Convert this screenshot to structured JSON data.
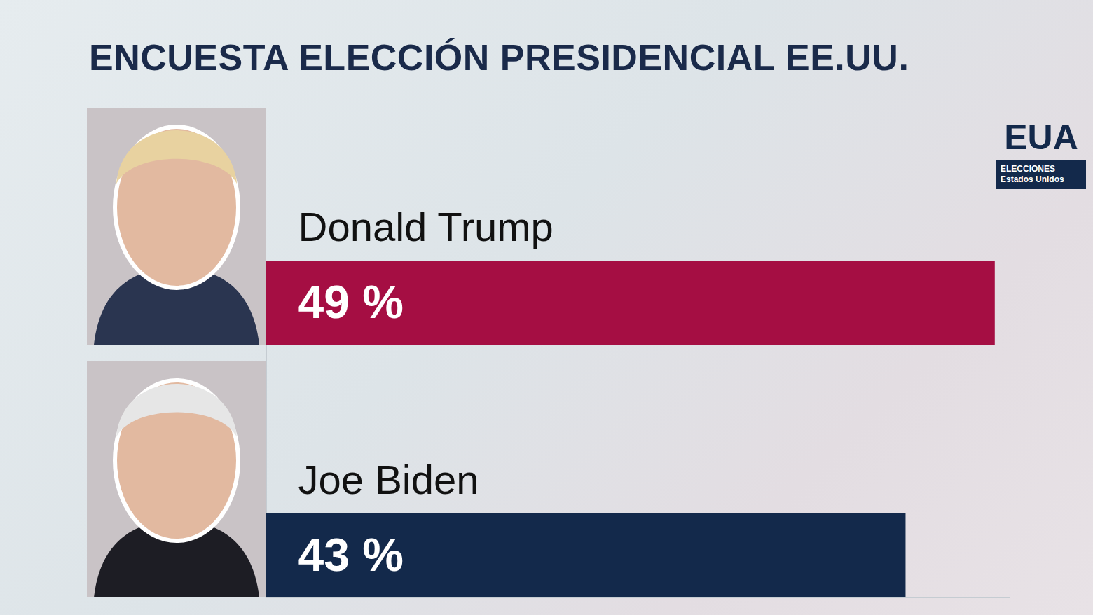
{
  "chart_data": {
    "type": "bar",
    "orientation": "horizontal",
    "title": "ENCUESTA ELECCIÓN PRESIDENCIAL EE.UU.",
    "categories": [
      "Donald Trump",
      "Joe Biden"
    ],
    "values": [
      49,
      43
    ],
    "value_labels": [
      "49 %",
      "43 %"
    ],
    "colors": [
      "#a50e43",
      "#13294b"
    ],
    "xlim": [
      0,
      50
    ],
    "xticks": [],
    "tick_labels": false,
    "data_labels": true,
    "grid": false
  },
  "badge": {
    "title": "EUA",
    "lines": [
      "ELECCIONES",
      "Estados Unidos"
    ]
  }
}
